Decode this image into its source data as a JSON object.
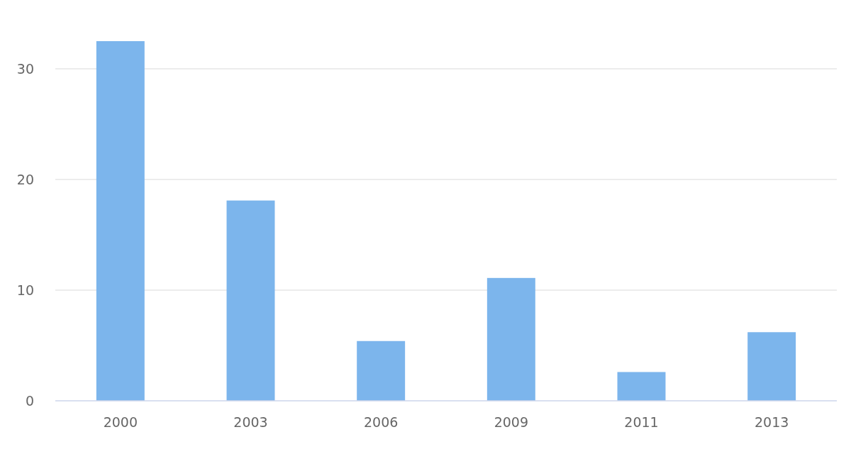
{
  "chart_data": {
    "type": "bar",
    "categories": [
      "2000",
      "2003",
      "2006",
      "2009",
      "2011",
      "2013"
    ],
    "values": [
      32.5,
      18.1,
      5.4,
      11.1,
      2.6,
      6.2
    ],
    "color": "#7cb5ec",
    "ylim": [
      0,
      32.5
    ],
    "yticks": [
      0,
      10,
      20,
      30
    ],
    "grid": "y"
  }
}
